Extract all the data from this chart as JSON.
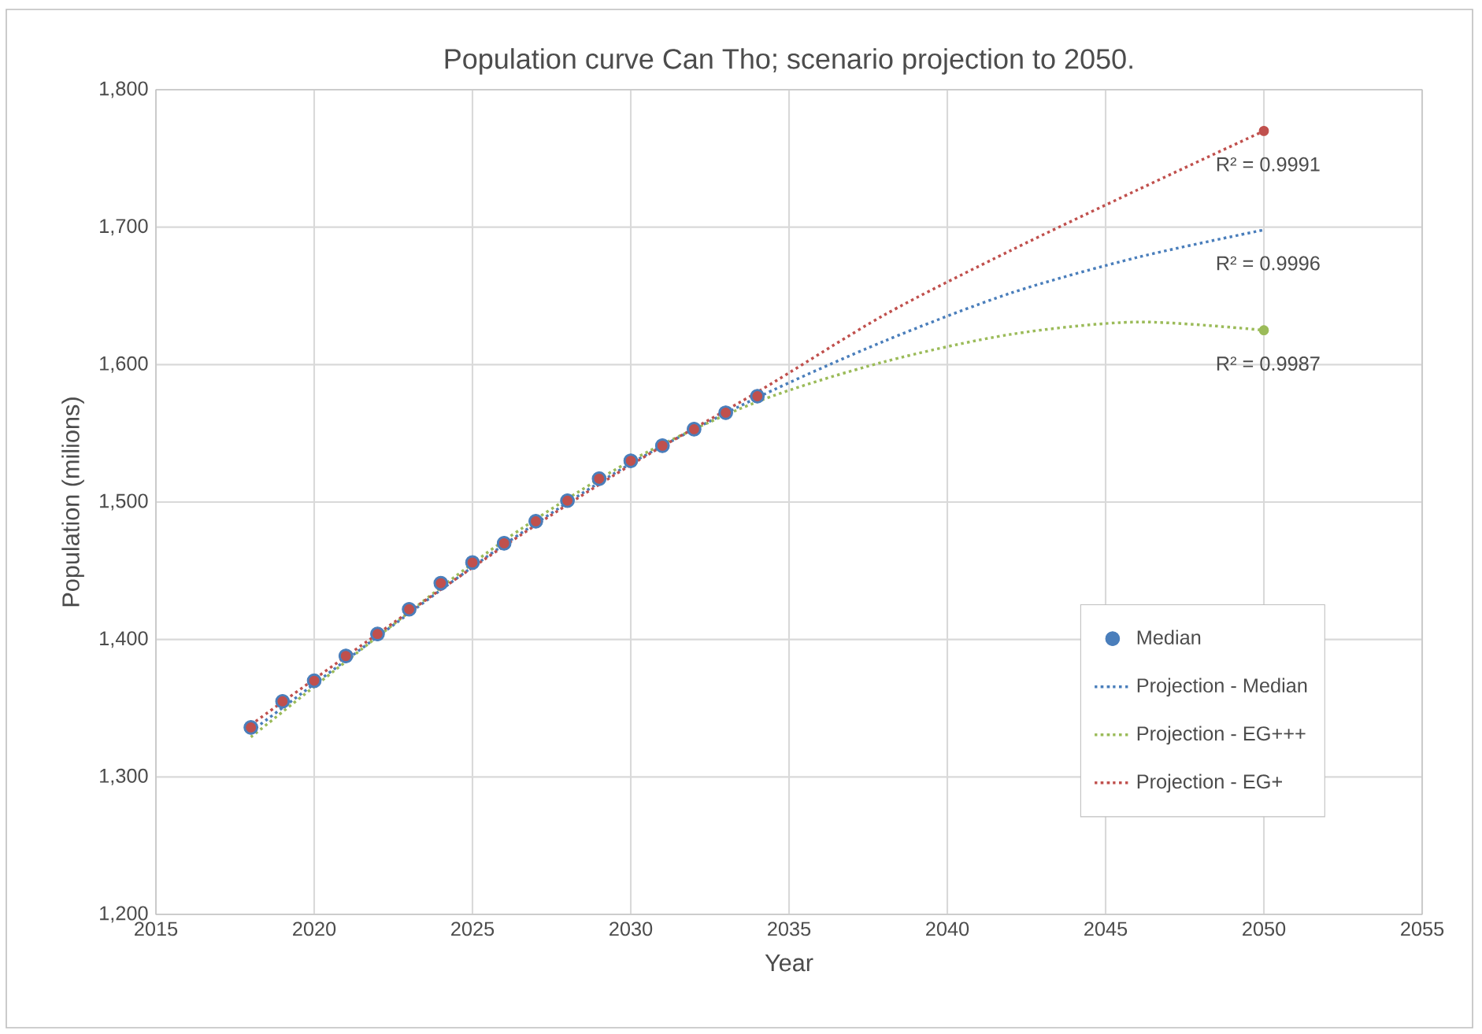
{
  "chart_data": {
    "type": "scatter",
    "title": "Population curve Can Tho; scenario projection to 2050.",
    "xlabel": "Year",
    "ylabel": "Population (milions)",
    "xlim": [
      2015,
      2055
    ],
    "xticks": [
      2015,
      2020,
      2025,
      2030,
      2035,
      2040,
      2045,
      2050,
      2055
    ],
    "ylim": [
      1200,
      1800
    ],
    "yticks": [
      {
        "value": 1200,
        "label": "1,200"
      },
      {
        "value": 1300,
        "label": "1,300"
      },
      {
        "value": 1400,
        "label": "1,400"
      },
      {
        "value": 1500,
        "label": "1,500"
      },
      {
        "value": 1600,
        "label": "1,600"
      },
      {
        "value": 1700,
        "label": "1,700"
      },
      {
        "value": 1800,
        "label": "1,800"
      }
    ],
    "grid": true,
    "legend": "bottom right",
    "series": [
      {
        "name": "Median",
        "color": "#4a7ebb",
        "x": [
          2018,
          2019,
          2020,
          2021,
          2022,
          2023,
          2024,
          2025,
          2026,
          2027,
          2028,
          2029,
          2030,
          2031,
          2032,
          2033,
          2034
        ],
        "values": [
          1336,
          1355,
          1370,
          1388,
          1404,
          1422,
          1441,
          1456,
          1470,
          1486,
          1501,
          1517,
          1530,
          1541,
          1553,
          1565,
          1577
        ]
      },
      {
        "color": "#c0504d",
        "x": [
          2018,
          2019,
          2020,
          2021,
          2022,
          2023,
          2024,
          2025,
          2026,
          2027,
          2028,
          2029,
          2030,
          2031,
          2032,
          2033,
          2034,
          2050
        ],
        "values": [
          1336,
          1355,
          1370,
          1388,
          1404,
          1422,
          1441,
          1456,
          1470,
          1486,
          1501,
          1517,
          1530,
          1541,
          1553,
          1565,
          1577,
          1770
        ]
      },
      {
        "color": "#9bbb59",
        "x": [
          2050
        ],
        "values": [
          1625
        ]
      },
      {
        "name": "Projection - Median",
        "type": "line",
        "marker": "none",
        "line_style": "dotted",
        "color": "#4a7ebb",
        "x": [
          2018,
          2022,
          2026,
          2030,
          2034,
          2038,
          2042,
          2046,
          2050
        ],
        "values": [
          1333,
          1402,
          1469,
          1528,
          1576,
          1617,
          1652,
          1678,
          1698
        ]
      },
      {
        "name": "Projection - EG+++",
        "type": "line",
        "marker": "none",
        "line_style": "dotted",
        "color": "#9bbb59",
        "x": [
          2018,
          2022,
          2026,
          2030,
          2034,
          2038,
          2042,
          2046,
          2050
        ],
        "values": [
          1329,
          1402,
          1472,
          1530,
          1573,
          1602,
          1622,
          1631,
          1625
        ]
      },
      {
        "name": "Projection - EG+",
        "type": "line",
        "marker": "none",
        "line_style": "dotted",
        "color": "#c0504d",
        "x": [
          2018,
          2022,
          2026,
          2030,
          2034,
          2038,
          2042,
          2046,
          2050
        ],
        "values": [
          1338,
          1404,
          1468,
          1527,
          1580,
          1636,
          1683,
          1727,
          1770
        ]
      }
    ],
    "annotations": [
      "R² = 0.9991",
      "R² = 0.9996",
      "R² = 0.9987"
    ]
  }
}
